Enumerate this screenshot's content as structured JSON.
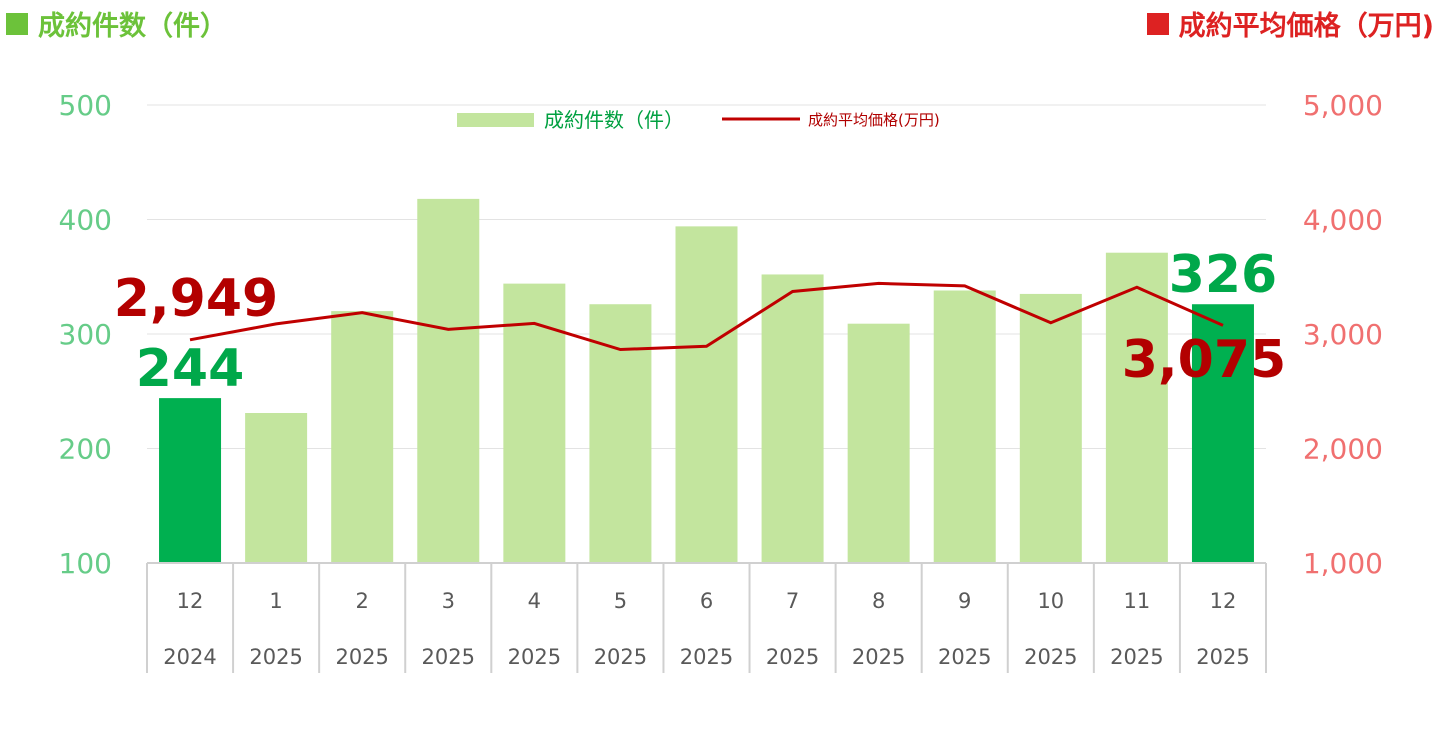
{
  "header": {
    "left_title": "成約件数（件）",
    "right_title": "成約平均価格（万円)",
    "left_color": "#6cc23a",
    "right_color": "#dd2222"
  },
  "chart_data": {
    "type": "bar",
    "categories": [
      {
        "month": "12",
        "year": "2024"
      },
      {
        "month": "1",
        "year": "2025"
      },
      {
        "month": "2",
        "year": "2025"
      },
      {
        "month": "3",
        "year": "2025"
      },
      {
        "month": "4",
        "year": "2025"
      },
      {
        "month": "5",
        "year": "2025"
      },
      {
        "month": "6",
        "year": "2025"
      },
      {
        "month": "7",
        "year": "2025"
      },
      {
        "month": "8",
        "year": "2025"
      },
      {
        "month": "9",
        "year": "2025"
      },
      {
        "month": "10",
        "year": "2025"
      },
      {
        "month": "11",
        "year": "2025"
      },
      {
        "month": "12",
        "year": "2025"
      }
    ],
    "series": [
      {
        "name": "成約件数（件）",
        "type": "bar",
        "axis": "left",
        "color": "#c3e59e",
        "highlight_color": "#00b050",
        "highlight_indices": [
          0,
          12
        ],
        "values": [
          244,
          231,
          320,
          418,
          344,
          326,
          394,
          352,
          309,
          338,
          335,
          371,
          326
        ]
      },
      {
        "name": "成約平均価格(万円)",
        "type": "line",
        "axis": "right",
        "color": "#c00000",
        "values": [
          2949,
          3088,
          3186,
          3040,
          3093,
          2865,
          2893,
          3371,
          3442,
          3420,
          3098,
          3408,
          3075
        ]
      }
    ],
    "y_left": {
      "min": 100,
      "max": 500,
      "ticks": [
        "100",
        "200",
        "300",
        "400",
        "500"
      ]
    },
    "y_right": {
      "min": 1000,
      "max": 5000,
      "ticks": [
        "1,000",
        "2,000",
        "3,000",
        "4,000",
        "5,000"
      ]
    },
    "grid": true,
    "legend_position": "top-center",
    "annotations": {
      "first_bar": "244",
      "first_price": "2,949",
      "last_bar": "326",
      "last_price": "3,075"
    }
  }
}
